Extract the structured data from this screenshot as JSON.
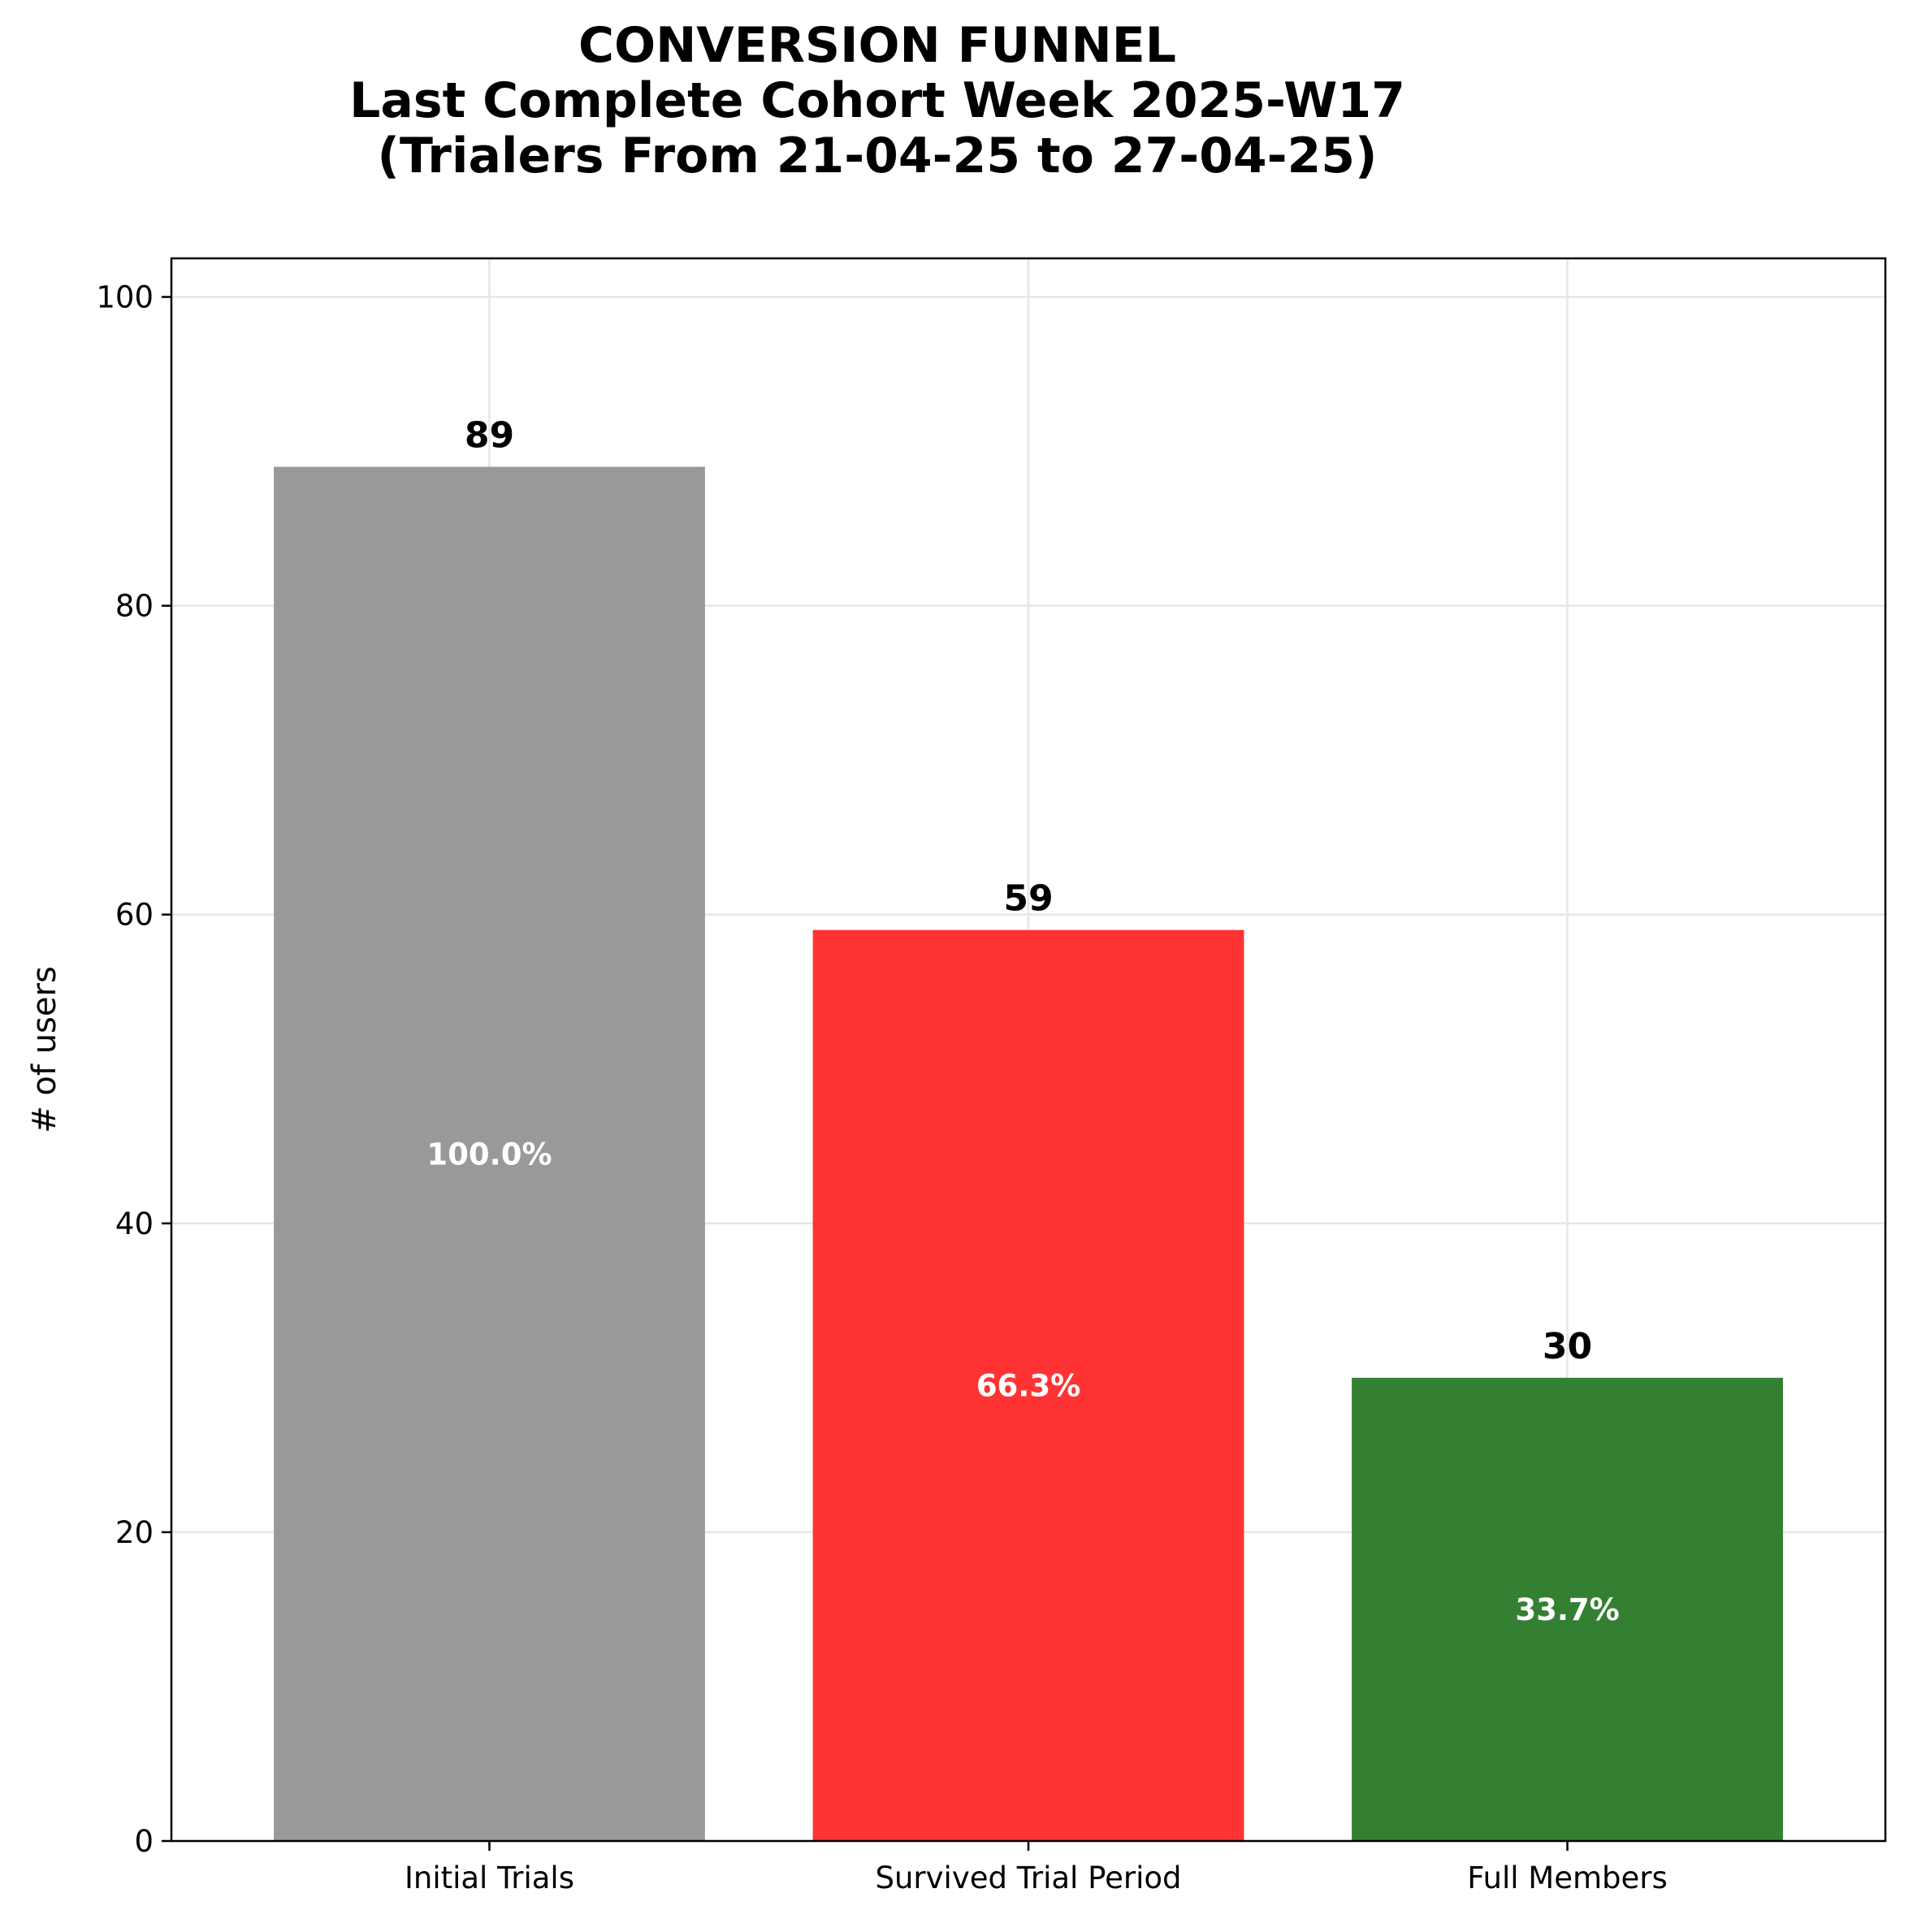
{
  "chart_data": {
    "type": "bar",
    "title_lines": [
      "CONVERSION FUNNEL",
      "Last Complete Cohort Week 2025-W17",
      "(Trialers From 21-04-25 to 27-04-25)"
    ],
    "xlabel": "",
    "ylabel": "# of users",
    "categories": [
      "Initial Trials",
      "Survived Trial Period",
      "Full Members"
    ],
    "values": [
      89,
      59,
      30
    ],
    "percent_labels": [
      "100.0%",
      "66.3%",
      "33.7%"
    ],
    "value_labels": [
      "89",
      "59",
      "30"
    ],
    "colors": [
      "#999999",
      "#ff3333",
      "#338033"
    ],
    "ylim": [
      0,
      102.5
    ],
    "yticks": [
      0,
      20,
      40,
      60,
      80,
      100
    ],
    "grid": true
  }
}
